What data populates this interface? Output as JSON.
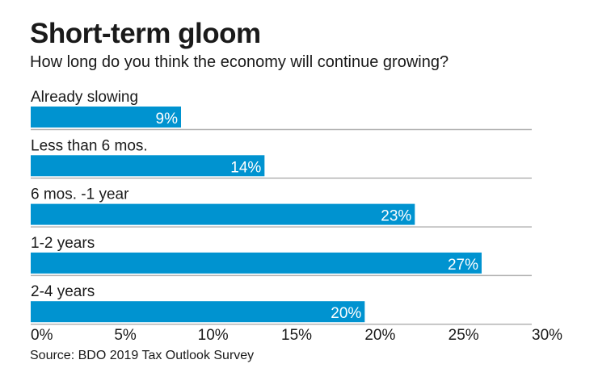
{
  "chart_data": {
    "type": "bar",
    "orientation": "horizontal",
    "title": "Short-term gloom",
    "subtitle": "How long do you think the economy will continue growing?",
    "categories": [
      "Already slowing",
      "Less than 6 mos.",
      "6 mos. -1 year",
      "1-2 years",
      "2-4 years"
    ],
    "values": [
      9,
      14,
      23,
      27,
      20
    ],
    "value_labels": [
      "9%",
      "14%",
      "23%",
      "27%",
      "20%"
    ],
    "xlim": [
      0,
      30
    ],
    "x_ticks": [
      "0%",
      "5%",
      "10%",
      "15%",
      "20%",
      "25%",
      "30%"
    ],
    "source": "Source: BDO 2019 Tax Outlook Survey",
    "bar_color": "#0093d0",
    "divider_color": "#b3b3b3",
    "grid": false
  }
}
